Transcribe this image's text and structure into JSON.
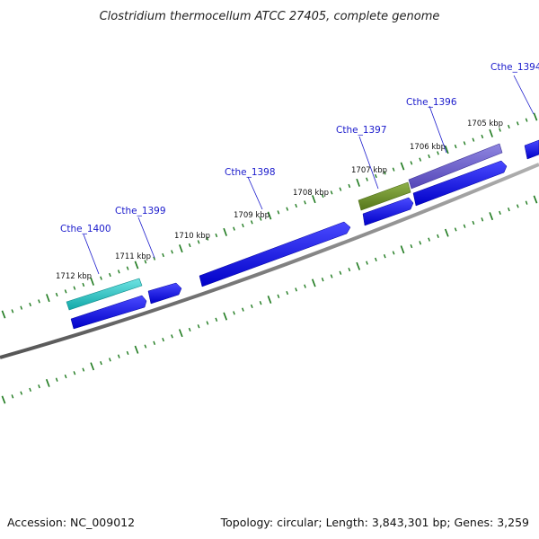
{
  "title": "Clostridium thermocellum ATCC 27405, complete genome",
  "footer": {
    "accession": "Accession: NC_009012",
    "summary": "Topology: circular; Length: 3,843,301 bp; Genes: 3,259"
  },
  "colors": {
    "backbone": "#7f7f7f",
    "tick": "#1e7a1e",
    "cds": "#0a0ae6",
    "highlight_cyan": "#22c8c8",
    "highlight_olive": "#6b8e23",
    "highlight_purple": "#6a5acd",
    "label_line": "#1a1acc"
  },
  "kbp_labels": [
    "1705 kbp",
    "1706 kbp",
    "1707 kbp",
    "1708 kbp",
    "1709 kbp",
    "1710 kbp",
    "1711 kbp",
    "1712 kbp"
  ],
  "gene_labels": [
    "Cthe_1394",
    "Cthe_1396",
    "Cthe_1397",
    "Cthe_1398",
    "Cthe_1399",
    "Cthe_1400"
  ]
}
